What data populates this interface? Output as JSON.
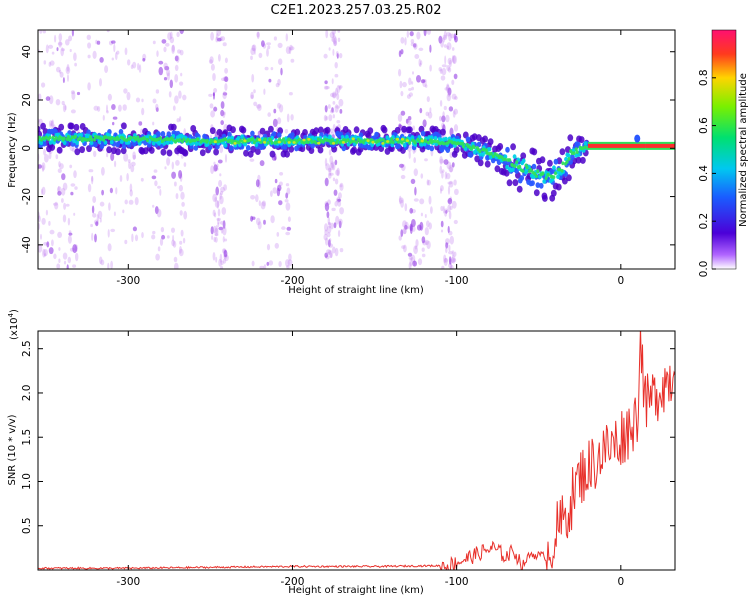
{
  "title": "C2E1.2023.257.03.25.R02",
  "colors": {
    "snr_line": "#e8302a",
    "axis": "#000000",
    "scatter_faint": "#c58af0",
    "band": [
      "#4b00c8",
      "#2a58ff",
      "#00d2e6",
      "#30e05a",
      "#c8e81e"
    ],
    "flat_segment": "#ff2d2d"
  },
  "chart_data": [
    {
      "type": "heatmap",
      "description_label": "spectrogram",
      "xlabel": "Height of straight line (km)",
      "ylabel": "Frequency (Hz)",
      "xlim": [
        -355,
        33
      ],
      "ylim": [
        -50,
        49
      ],
      "xticks": [
        -300,
        -200,
        -100,
        0
      ],
      "yticks": [
        -40,
        -20,
        0,
        20,
        40
      ],
      "colorbar": {
        "label": "Normalized spectral amplitude",
        "range": [
          0,
          1
        ],
        "ticks": [
          0.0,
          0.2,
          0.4,
          0.6,
          0.8
        ]
      },
      "ridge": {
        "x": [
          -355,
          -300,
          -250,
          -200,
          -150,
          -120,
          -100,
          -80,
          -60,
          -45,
          -38,
          -30,
          -20,
          -10,
          0,
          10,
          15,
          33
        ],
        "y": [
          4,
          4,
          3,
          3,
          3,
          3,
          2,
          -2,
          -8,
          -12,
          -10,
          -2,
          1,
          1,
          1,
          3,
          1,
          1
        ]
      }
    },
    {
      "type": "line",
      "xlabel": "Height of straight line (km)",
      "ylabel": "SNR (10 * v/v)",
      "y_exponent_label": "(x10",
      "y_exponent_power": "4",
      "y_exponent_close": ")",
      "xlim": [
        -355,
        33
      ],
      "ylim": [
        0,
        2.7
      ],
      "xticks": [
        -300,
        -200,
        -100,
        0
      ],
      "yticks": [
        0.5,
        1.0,
        1.5,
        2.0,
        2.5
      ],
      "ytick_labels": [
        "0.5",
        "1.0",
        "1.5",
        "2.0",
        "2.5"
      ],
      "series": [
        {
          "x": [
            -355,
            -300,
            -250,
            -200,
            -150,
            -105,
            -95,
            -85,
            -78,
            -70,
            -65,
            -60,
            -55,
            -45,
            -40,
            -35,
            -30,
            -25,
            -20,
            -15,
            -10,
            -5,
            0,
            5,
            10,
            12,
            15,
            20,
            25,
            33
          ],
          "y": [
            0.02,
            0.02,
            0.03,
            0.04,
            0.04,
            0.05,
            0.12,
            0.2,
            0.25,
            0.15,
            0.22,
            0.05,
            0.18,
            0.15,
            0.4,
            0.55,
            0.8,
            1.05,
            1.15,
            1.25,
            1.35,
            1.4,
            1.5,
            1.6,
            1.75,
            2.65,
            1.85,
            1.95,
            2.1,
            2.2
          ]
        }
      ]
    }
  ]
}
